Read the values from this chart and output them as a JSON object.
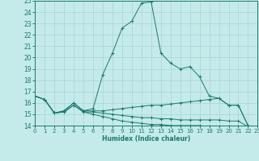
{
  "xlabel": "Humidex (Indice chaleur)",
  "xlim": [
    0,
    23
  ],
  "ylim": [
    14,
    25
  ],
  "yticks": [
    14,
    15,
    16,
    17,
    18,
    19,
    20,
    21,
    22,
    23,
    24,
    25
  ],
  "xticks": [
    0,
    1,
    2,
    3,
    4,
    5,
    6,
    7,
    8,
    9,
    10,
    11,
    12,
    13,
    14,
    15,
    16,
    17,
    18,
    19,
    20,
    21,
    22,
    23
  ],
  "bg_color": "#c5eaea",
  "grid_color": "#a8d4d4",
  "line_color": "#1a7a6e",
  "series": [
    {
      "x": [
        0,
        1,
        2,
        3,
        4,
        5,
        6,
        7,
        8,
        9,
        10,
        11,
        12,
        13,
        14,
        15,
        16,
        17,
        18,
        19,
        20,
        21,
        22,
        23
      ],
      "y": [
        16.6,
        16.3,
        15.1,
        15.3,
        16.0,
        15.3,
        15.5,
        18.5,
        20.4,
        22.6,
        23.2,
        24.8,
        24.9,
        20.4,
        19.5,
        19.0,
        19.2,
        18.3,
        16.6,
        16.4,
        15.8,
        15.8,
        14.0,
        13.8
      ]
    },
    {
      "x": [
        0,
        1,
        2,
        3,
        4,
        5,
        6,
        7,
        8,
        9,
        10,
        11,
        12,
        13,
        14,
        15,
        16,
        17,
        18,
        19,
        20,
        21,
        22,
        23
      ],
      "y": [
        16.6,
        16.3,
        15.1,
        15.3,
        16.0,
        15.3,
        15.3,
        15.3,
        15.4,
        15.5,
        15.6,
        15.7,
        15.8,
        15.8,
        15.9,
        16.0,
        16.1,
        16.2,
        16.3,
        16.4,
        15.8,
        15.8,
        14.0,
        13.8
      ]
    },
    {
      "x": [
        0,
        1,
        2,
        3,
        4,
        5,
        6,
        7,
        8,
        9,
        10,
        11,
        12,
        13,
        14,
        15,
        16,
        17,
        18,
        19,
        20,
        21,
        22,
        23
      ],
      "y": [
        16.6,
        16.3,
        15.1,
        15.2,
        15.8,
        15.2,
        15.2,
        15.1,
        15.0,
        14.9,
        14.8,
        14.7,
        14.7,
        14.6,
        14.6,
        14.5,
        14.5,
        14.5,
        14.5,
        14.5,
        14.4,
        14.4,
        13.9,
        13.8
      ]
    },
    {
      "x": [
        0,
        1,
        2,
        3,
        4,
        5,
        6,
        7,
        8,
        9,
        10,
        11,
        12,
        13,
        14,
        15,
        16,
        17,
        18,
        19,
        20,
        21,
        22,
        23
      ],
      "y": [
        16.6,
        16.3,
        15.1,
        15.2,
        15.8,
        15.2,
        15.0,
        14.8,
        14.6,
        14.4,
        14.3,
        14.2,
        14.1,
        14.1,
        14.0,
        14.0,
        14.0,
        14.0,
        13.9,
        13.9,
        13.9,
        13.9,
        13.9,
        13.8
      ]
    }
  ]
}
